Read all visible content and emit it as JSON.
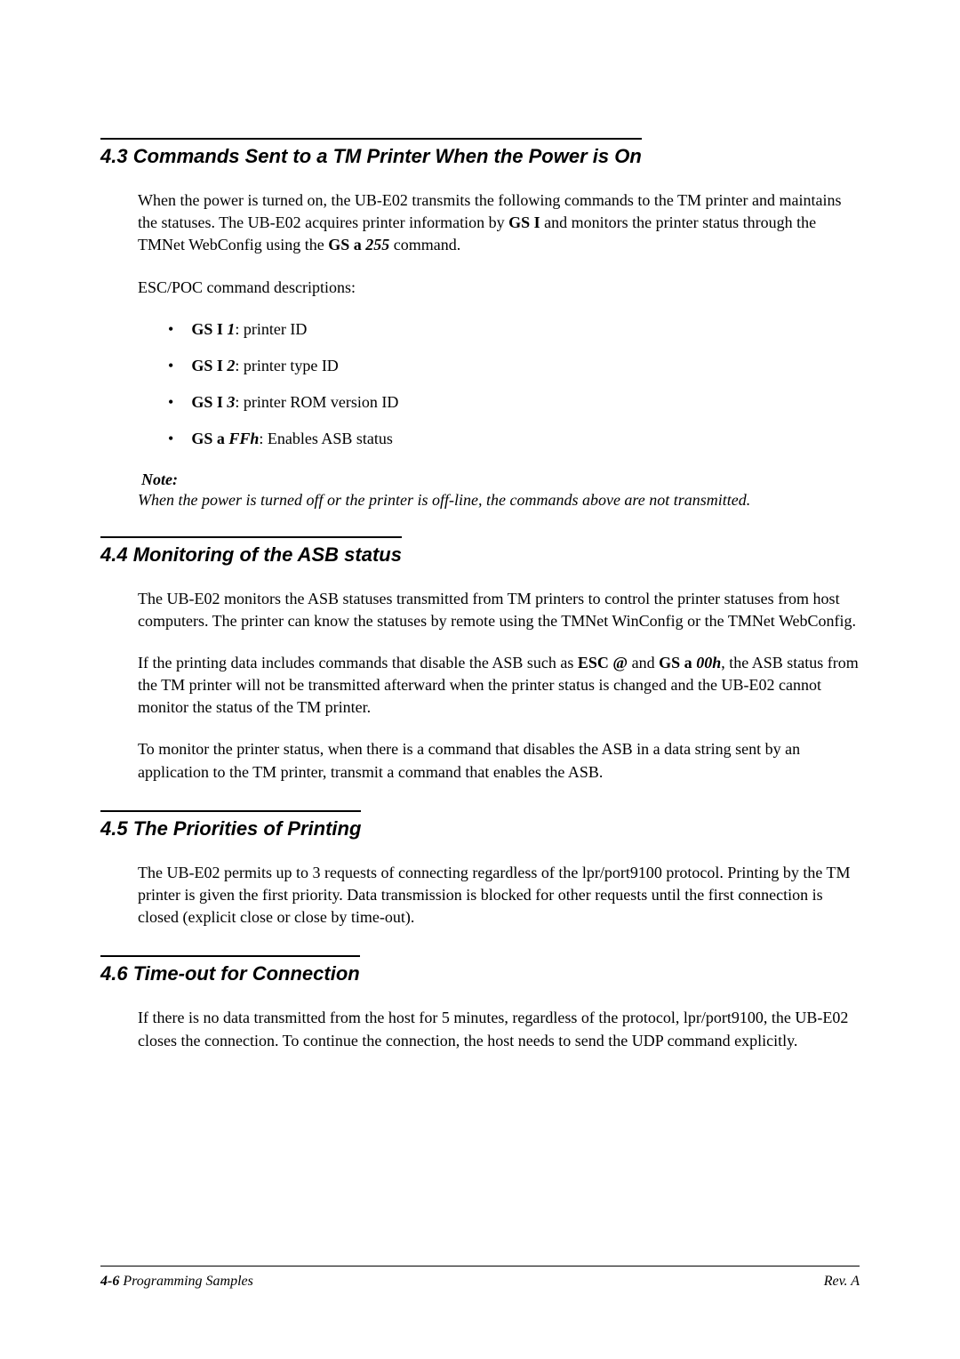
{
  "sections": {
    "s43": {
      "heading": "4.3  Commands Sent to a TM Printer When the Power is On",
      "p1_pre": "When the power is turned on, the UB-E02 transmits the following commands to the TM printer and maintains the statuses. The UB-E02 acquires printer information by ",
      "p1_b1": "GS I",
      "p1_mid": " and monitors the printer status through the TMNet WebConfig using the ",
      "p1_b2": "GS a",
      "p1_b2i": " 255",
      "p1_end": " command.",
      "p2": "ESC/POC command descriptions:",
      "li1_b": "GS I",
      "li1_bi": " 1",
      "li1_t": ": printer ID",
      "li2_b": "GS I",
      "li2_bi": " 2",
      "li2_t": ": printer type ID",
      "li3_b": "GS I",
      "li3_bi": " 3",
      "li3_t": ": printer ROM version ID",
      "li4_b": "GS a",
      "li4_bi": " FFh",
      "li4_t": ": Enables ASB status",
      "note_label": " Note:",
      "note_text": "When the power is turned off or the printer is off-line, the commands above are not transmitted."
    },
    "s44": {
      "heading": "4.4  Monitoring of the ASB status",
      "p1": "The UB-E02 monitors the ASB statuses transmitted from TM printers to control the printer statuses from host computers. The printer can know the statuses by remote using the TMNet WinConfig or the TMNet WebConfig.",
      "p2_pre": "If the printing data includes commands that disable the ASB such as ",
      "p2_b1": "ESC @",
      "p2_mid": " and ",
      "p2_b2": "GS a",
      "p2_b2i": " 00h",
      "p2_end": ", the ASB status from the TM printer will not be transmitted afterward when the printer status is changed and the UB-E02 cannot monitor the status of the TM printer.",
      "p3": "To monitor the printer status, when there is a command that disables the ASB in a data string sent by an application to the TM printer, transmit a command that enables the ASB."
    },
    "s45": {
      "heading": "4.5  The Priorities of Printing",
      "p1": "The UB-E02 permits up to 3 requests of connecting regardless of the lpr/port9100 protocol. Printing by the TM printer is given the first priority. Data transmission is blocked for other requests until the first connection is closed (explicit close or close by time-out)."
    },
    "s46": {
      "heading": "4.6  Time-out for Connection",
      "p1": "If there is no data transmitted from the host for 5 minutes, regardless of the protocol, lpr/port9100, the UB-E02 closes the connection. To continue the connection, the host needs to send the UDP command explicitly."
    }
  },
  "footer": {
    "page": "4-6",
    "title": "   Programming Samples",
    "rev": "Rev. A"
  }
}
